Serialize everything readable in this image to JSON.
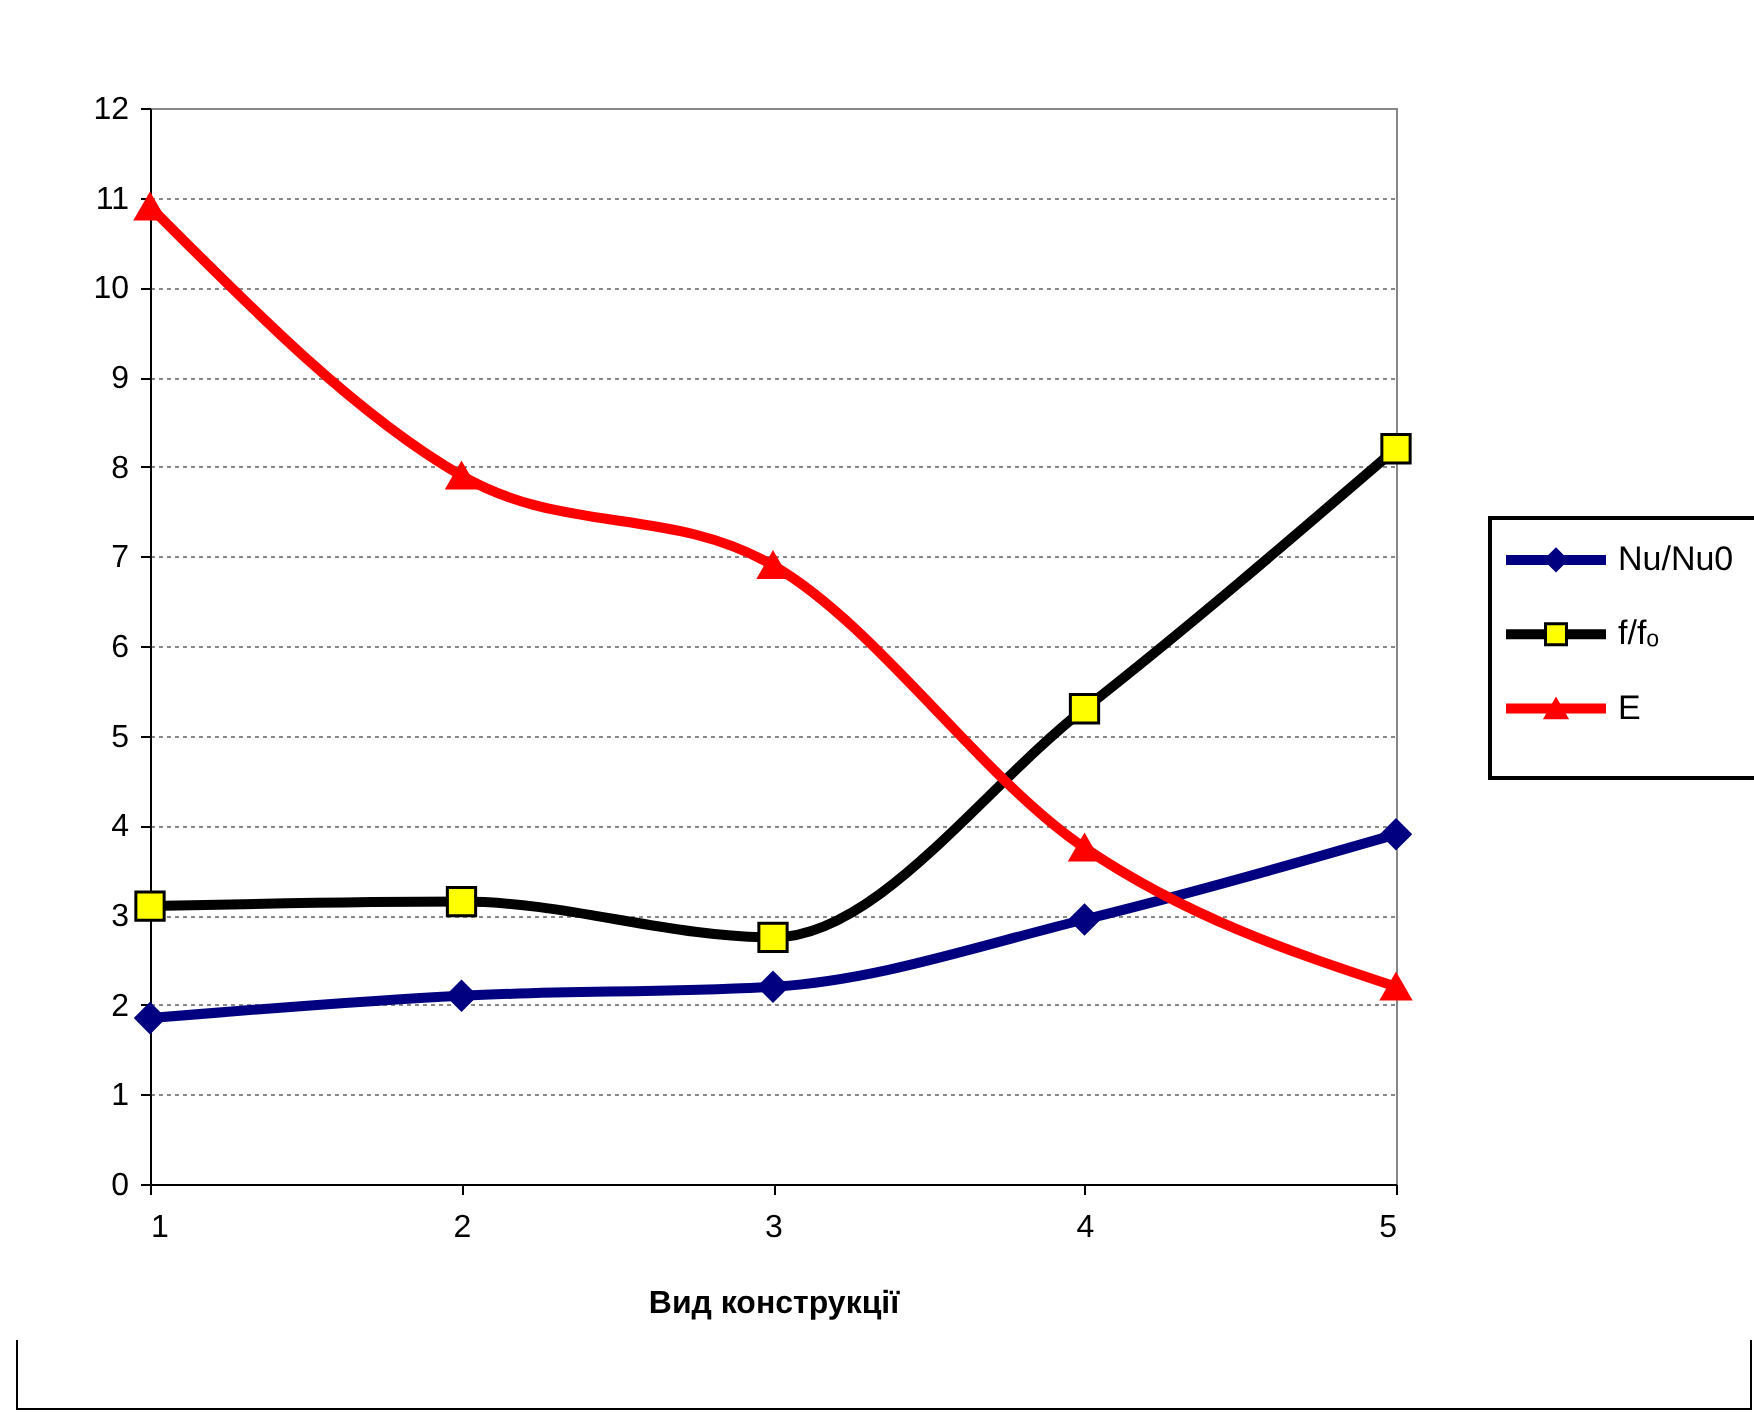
{
  "chart_data": {
    "type": "line",
    "xlabel": "Вид конструкції",
    "x": [
      1,
      2,
      3,
      4,
      5
    ],
    "xlim": [
      1,
      5
    ],
    "xticks": [
      1,
      2,
      3,
      4,
      5
    ],
    "ylim": [
      0,
      12
    ],
    "yticks": [
      0,
      1,
      2,
      3,
      4,
      5,
      6,
      7,
      8,
      9,
      10,
      11,
      12
    ],
    "grid": "y",
    "legend": "right",
    "series": [
      {
        "name": "Nu/Nu0",
        "color": "#000080",
        "marker": "diamond",
        "values": [
          1.85,
          2.1,
          2.2,
          2.95,
          3.9
        ]
      },
      {
        "name": "f/fₒ",
        "color": "#000000",
        "marker": "square",
        "values": [
          3.1,
          3.15,
          2.75,
          5.3,
          8.2
        ]
      },
      {
        "name": "E",
        "color": "#ff0000",
        "marker": "triangle",
        "values": [
          10.9,
          7.9,
          6.9,
          3.75,
          2.2
        ]
      }
    ]
  }
}
